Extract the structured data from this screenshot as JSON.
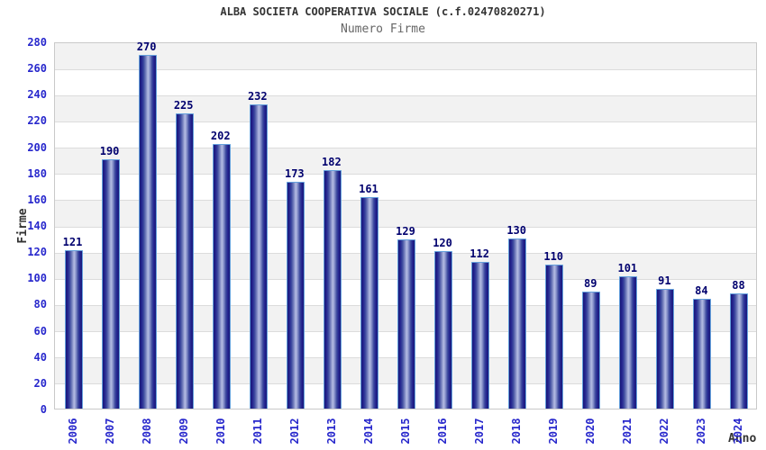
{
  "header": {
    "title": "ALBA SOCIETA COOPERATIVA SOCIALE (c.f.02470820271)",
    "subtitle": "Numero Firme"
  },
  "chart_data": {
    "type": "bar",
    "title": "ALBA SOCIETA COOPERATIVA SOCIALE (c.f.02470820271)",
    "subtitle": "Numero Firme",
    "xlabel": "Anno",
    "ylabel": "Firme",
    "categories": [
      "2006",
      "2007",
      "2008",
      "2009",
      "2010",
      "2011",
      "2012",
      "2013",
      "2014",
      "2015",
      "2016",
      "2017",
      "2018",
      "2019",
      "2020",
      "2021",
      "2022",
      "2023",
      "2024"
    ],
    "values": [
      121,
      190,
      270,
      225,
      202,
      232,
      173,
      182,
      161,
      129,
      120,
      112,
      130,
      110,
      89,
      101,
      91,
      84,
      88
    ],
    "ylim": [
      0,
      280
    ],
    "ytick_step": 20,
    "grid": true,
    "legend": "none",
    "band_fill_alternating": true,
    "colors": {
      "bar_edge_dark": "#191978",
      "bar_center_light": "#b4bce2",
      "bar_outline": "#64a0dc",
      "tick_label": "#2727cc",
      "value_label": "#00006e",
      "band_gray": "#f2f2f2",
      "gridline": "#dcdcdc",
      "plot_border": "#c9c9c9",
      "title": "#333333",
      "subtitle": "#666666",
      "axis_title": "#333333",
      "background": "#ffffff"
    }
  }
}
